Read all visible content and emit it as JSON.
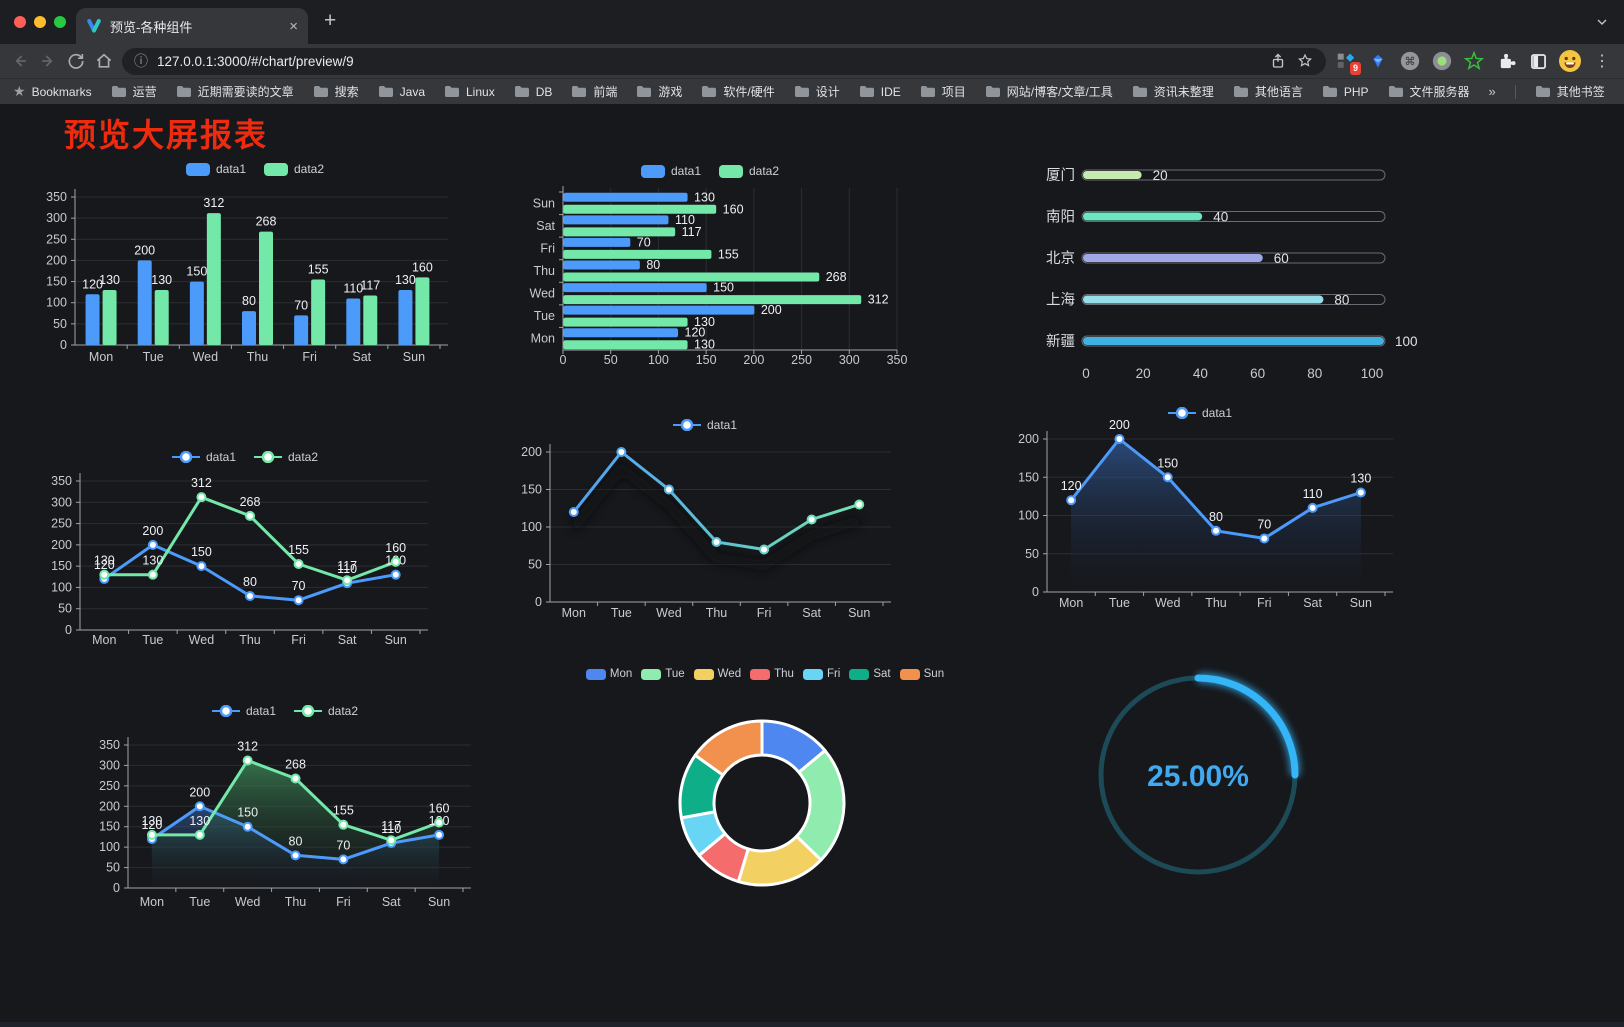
{
  "browser": {
    "tab": {
      "title": "预览-各种组件"
    },
    "toolbar": {
      "url": "127.0.0.1:3000/#/chart/preview/9",
      "extension_badge": "9"
    },
    "bookmarks_bar": {
      "label_first": "Bookmarks",
      "items": [
        "运营",
        "近期需要读的文章",
        "搜索",
        "Java",
        "Linux",
        "DB",
        "前端",
        "游戏",
        "软件/硬件",
        "设计",
        "IDE",
        "项目",
        "网站/博客/文章/工具",
        "资讯未整理",
        "其他语言",
        "PHP",
        "文件服务器"
      ],
      "overflow": "»",
      "other_bookmarks": "其他书签"
    }
  },
  "icons": {
    "new_tab": "+",
    "close_tab": "×",
    "menu_dots": "⋮",
    "info": "ⓘ",
    "cmd": "⌘"
  },
  "page": {
    "title": "预览大屏报表",
    "title_color": "#ee2b0e"
  },
  "chart_data": [
    {
      "id": "bar-grouped",
      "type": "bar",
      "categories": [
        "Mon",
        "Tue",
        "Wed",
        "Thu",
        "Fri",
        "Sat",
        "Sun"
      ],
      "series": [
        {
          "name": "data1",
          "color": "#4C9BFA",
          "values": [
            120,
            200,
            150,
            80,
            70,
            110,
            130
          ]
        },
        {
          "name": "data2",
          "color": "#73E8A9",
          "values": [
            130,
            130,
            312,
            268,
            155,
            117,
            160
          ]
        }
      ],
      "ylim": [
        0,
        350
      ],
      "yticks": [
        0,
        50,
        100,
        150,
        200,
        250,
        300,
        350
      ],
      "legend_position": "top",
      "grid": true
    },
    {
      "id": "hbar-grouped",
      "type": "bar",
      "orientation": "horizontal",
      "categories": [
        "Mon",
        "Tue",
        "Wed",
        "Thu",
        "Fri",
        "Sat",
        "Sun"
      ],
      "categories_display_top_to_bottom": [
        "Sun",
        "Sat",
        "Fri",
        "Thu",
        "Wed",
        "Tue",
        "Mon"
      ],
      "series": [
        {
          "name": "data1",
          "color": "#4C9BFA",
          "values": [
            120,
            200,
            150,
            80,
            70,
            110,
            130
          ]
        },
        {
          "name": "data2",
          "color": "#73E8A9",
          "values": [
            130,
            130,
            312,
            268,
            155,
            117,
            160
          ]
        }
      ],
      "xlim": [
        0,
        350
      ],
      "xticks": [
        0,
        50,
        100,
        150,
        200,
        250,
        300,
        350
      ],
      "legend_position": "top",
      "grid": true
    },
    {
      "id": "progress-list",
      "type": "bar",
      "subtype": "progress-pills",
      "items": [
        {
          "label": "厦门",
          "value": 20,
          "color": "#c4ebad"
        },
        {
          "label": "南阳",
          "value": 40,
          "color": "#6be6c1"
        },
        {
          "label": "北京",
          "value": 60,
          "color": "#a0a7e6"
        },
        {
          "label": "上海",
          "value": 80,
          "color": "#96dee8"
        },
        {
          "label": "新疆",
          "value": 100,
          "color": "#3fb1e3"
        }
      ],
      "xlim": [
        0,
        100
      ],
      "xticks": [
        0,
        20,
        40,
        60,
        80,
        100
      ]
    },
    {
      "id": "line-basic",
      "type": "line",
      "categories": [
        "Mon",
        "Tue",
        "Wed",
        "Thu",
        "Fri",
        "Sat",
        "Sun"
      ],
      "series": [
        {
          "name": "data1",
          "color": "#4C9BFA",
          "values": [
            120,
            200,
            150,
            80,
            70,
            110,
            130
          ]
        },
        {
          "name": "data2",
          "color": "#73E8A9",
          "values": [
            130,
            130,
            312,
            268,
            155,
            117,
            160
          ]
        }
      ],
      "ylim": [
        0,
        350
      ],
      "yticks": [
        0,
        50,
        100,
        150,
        200,
        250,
        300,
        350
      ],
      "point_labels": true
    },
    {
      "id": "line-gradient",
      "type": "line",
      "categories": [
        "Mon",
        "Tue",
        "Wed",
        "Thu",
        "Fri",
        "Sat",
        "Sun"
      ],
      "series": [
        {
          "name": "data1",
          "color_gradient": [
            "#4C9BFA",
            "#73E8A9"
          ],
          "values": [
            120,
            200,
            150,
            80,
            70,
            110,
            130
          ]
        }
      ],
      "ylim": [
        0,
        200
      ],
      "yticks": [
        0,
        50,
        100,
        150,
        200
      ],
      "point_labels": false
    },
    {
      "id": "line-area",
      "type": "area",
      "categories": [
        "Mon",
        "Tue",
        "Wed",
        "Thu",
        "Fri",
        "Sat",
        "Sun"
      ],
      "series": [
        {
          "name": "data1",
          "color": "#4C9BFA",
          "values": [
            120,
            200,
            150,
            80,
            70,
            110,
            130
          ]
        }
      ],
      "ylim": [
        0,
        200
      ],
      "yticks": [
        0,
        50,
        100,
        150,
        200
      ],
      "point_labels": true
    },
    {
      "id": "line-area-two",
      "type": "area",
      "categories": [
        "Mon",
        "Tue",
        "Wed",
        "Thu",
        "Fri",
        "Sat",
        "Sun"
      ],
      "series": [
        {
          "name": "data1",
          "color": "#4C9BFA",
          "values": [
            120,
            200,
            150,
            80,
            70,
            110,
            130
          ]
        },
        {
          "name": "data2",
          "color": "#73E8A9",
          "values": [
            130,
            130,
            312,
            268,
            155,
            117,
            160
          ]
        }
      ],
      "ylim": [
        0,
        350
      ],
      "yticks": [
        0,
        50,
        100,
        150,
        200,
        250,
        300,
        350
      ],
      "point_labels": true
    },
    {
      "id": "donut-days",
      "type": "pie",
      "subtype": "donut",
      "categories": [
        "Mon",
        "Tue",
        "Wed",
        "Thu",
        "Fri",
        "Sat",
        "Sun"
      ],
      "values": [
        120,
        200,
        150,
        80,
        70,
        110,
        130
      ],
      "colors": [
        "#4E87F0",
        "#8FEBAE",
        "#F2D162",
        "#F56C6C",
        "#69D5F4",
        "#0EAE88",
        "#F2914E"
      ],
      "legend_position": "top"
    },
    {
      "id": "gauge-percent",
      "type": "gauge",
      "value_percent": 25,
      "value_label": "25.00%",
      "arc_color": "#33B5F7",
      "ring_color": "#1d4a57",
      "text_color": "#41A9F0"
    }
  ]
}
